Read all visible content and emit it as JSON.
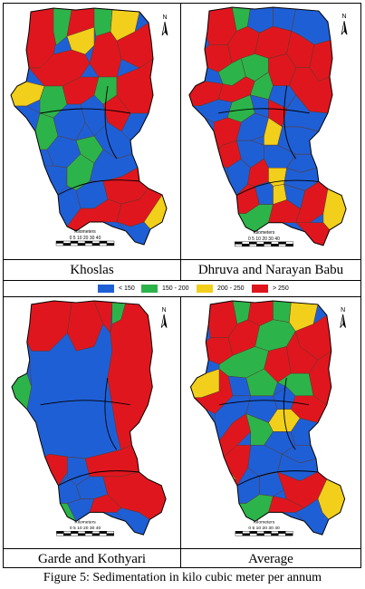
{
  "colors": {
    "c1": "#1f5fd6",
    "c2": "#2cb44a",
    "c3": "#f2cf1a",
    "c4": "#e0161e"
  },
  "panels": [
    {
      "title": "Khoslas",
      "scalebar": {
        "title": "Kilometers",
        "ticks": "0 5 10 20 30 40"
      },
      "north": "N"
    },
    {
      "title": "Dhruva and Narayan Babu",
      "scalebar": {
        "title": "Kilometers",
        "ticks": "0 5 10 20 30 40"
      },
      "north": "N"
    },
    {
      "title": "Garde and Kothyari",
      "scalebar": {
        "title": "Kilometers",
        "ticks": "0 5 10 20 30 40"
      },
      "north": "N"
    },
    {
      "title": "Average",
      "scalebar": {
        "title": "Kilometers",
        "ticks": "0 5 10 20 30 40"
      },
      "north": "N"
    }
  ],
  "legend": [
    {
      "label": "< 150",
      "color": "#1f5fd6"
    },
    {
      "label": "150 - 200",
      "color": "#2cb44a"
    },
    {
      "label": "200 - 250",
      "color": "#f2cf1a"
    },
    {
      "label": "> 250",
      "color": "#e0161e"
    }
  ],
  "caption": "Figure 5: Sedimentation in kilo cubic meter per annum"
}
